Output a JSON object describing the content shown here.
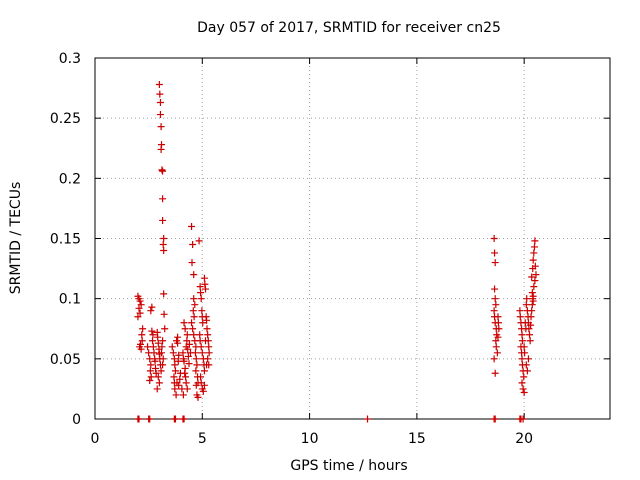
{
  "chart_data": {
    "type": "scatter",
    "title": "Day 057 of 2017, SRMTID for receiver cn25",
    "xlabel": "GPS time / hours",
    "ylabel": "SRMTID / TECUs",
    "xlim": [
      0,
      24
    ],
    "ylim": [
      0,
      0.3
    ],
    "grid": true,
    "x_ticks": [
      0,
      5,
      10,
      15,
      20
    ],
    "x_tick_labels": [
      "0",
      "5",
      "10",
      "15",
      "20"
    ],
    "y_ticks": [
      0,
      0.05,
      0.1,
      0.15,
      0.2,
      0.25,
      0.3
    ],
    "y_tick_labels": [
      "0",
      "0.05",
      "0.1",
      "0.15",
      "0.2",
      "0.25",
      "0.3"
    ],
    "marker": "+",
    "color": "#cc0000",
    "series": [
      {
        "name": "SRMTID",
        "points": [
          [
            2.0,
            0.0
          ],
          [
            2.05,
            0.0
          ],
          [
            2.5,
            0.0
          ],
          [
            2.55,
            0.0
          ],
          [
            3.7,
            0.0
          ],
          [
            3.75,
            0.0
          ],
          [
            4.1,
            0.0
          ],
          [
            4.15,
            0.0
          ],
          [
            12.7,
            0.0
          ],
          [
            18.6,
            0.0
          ],
          [
            18.65,
            0.0
          ],
          [
            19.8,
            0.0
          ],
          [
            19.85,
            0.0
          ],
          [
            19.95,
            0.0
          ],
          [
            2.0,
            0.102
          ],
          [
            2.05,
            0.1
          ],
          [
            2.1,
            0.098
          ],
          [
            2.15,
            0.095
          ],
          [
            2.05,
            0.092
          ],
          [
            2.1,
            0.088
          ],
          [
            2.0,
            0.085
          ],
          [
            2.12,
            0.062
          ],
          [
            2.08,
            0.06
          ],
          [
            2.15,
            0.058
          ],
          [
            2.2,
            0.065
          ],
          [
            2.18,
            0.07
          ],
          [
            2.22,
            0.075
          ],
          [
            2.45,
            0.06
          ],
          [
            2.5,
            0.055
          ],
          [
            2.55,
            0.05
          ],
          [
            2.6,
            0.045
          ],
          [
            2.58,
            0.04
          ],
          [
            2.62,
            0.035
          ],
          [
            2.65,
            0.073
          ],
          [
            2.7,
            0.07
          ],
          [
            2.68,
            0.065
          ],
          [
            2.72,
            0.06
          ],
          [
            2.75,
            0.055
          ],
          [
            2.78,
            0.05
          ],
          [
            2.8,
            0.048
          ],
          [
            2.82,
            0.042
          ],
          [
            2.85,
            0.038
          ],
          [
            2.6,
            0.09
          ],
          [
            2.65,
            0.093
          ],
          [
            2.55,
            0.032
          ],
          [
            2.9,
            0.072
          ],
          [
            2.92,
            0.068
          ],
          [
            2.95,
            0.063
          ],
          [
            2.98,
            0.058
          ],
          [
            3.0,
            0.054
          ],
          [
            3.02,
            0.05
          ],
          [
            3.05,
            0.045
          ],
          [
            3.08,
            0.04
          ],
          [
            2.95,
            0.035
          ],
          [
            3.0,
            0.03
          ],
          [
            2.9,
            0.025
          ],
          [
            3.1,
            0.055
          ],
          [
            3.12,
            0.06
          ],
          [
            3.15,
            0.065
          ],
          [
            3.15,
            0.045
          ],
          [
            3.18,
            0.05
          ],
          [
            3.0,
            0.278
          ],
          [
            3.02,
            0.27
          ],
          [
            3.05,
            0.263
          ],
          [
            3.05,
            0.253
          ],
          [
            3.08,
            0.243
          ],
          [
            3.1,
            0.228
          ],
          [
            3.08,
            0.224
          ],
          [
            3.12,
            0.207
          ],
          [
            3.15,
            0.206
          ],
          [
            3.15,
            0.183
          ],
          [
            3.15,
            0.165
          ],
          [
            3.2,
            0.15
          ],
          [
            3.18,
            0.145
          ],
          [
            3.2,
            0.14
          ],
          [
            3.22,
            0.087
          ],
          [
            3.25,
            0.075
          ],
          [
            3.2,
            0.104
          ],
          [
            3.6,
            0.06
          ],
          [
            3.65,
            0.055
          ],
          [
            3.7,
            0.05
          ],
          [
            3.72,
            0.045
          ],
          [
            3.75,
            0.04
          ],
          [
            3.68,
            0.035
          ],
          [
            3.7,
            0.03
          ],
          [
            3.72,
            0.025
          ],
          [
            3.78,
            0.02
          ],
          [
            3.8,
            0.065
          ],
          [
            3.85,
            0.063
          ],
          [
            3.9,
            0.053
          ],
          [
            3.88,
            0.048
          ],
          [
            3.82,
            0.03
          ],
          [
            3.9,
            0.028
          ],
          [
            3.95,
            0.033
          ],
          [
            3.98,
            0.038
          ],
          [
            3.85,
            0.068
          ],
          [
            4.1,
            0.055
          ],
          [
            4.12,
            0.05
          ],
          [
            4.15,
            0.048
          ],
          [
            4.2,
            0.042
          ],
          [
            4.18,
            0.038
          ],
          [
            4.22,
            0.035
          ],
          [
            4.25,
            0.06
          ],
          [
            4.28,
            0.065
          ],
          [
            4.3,
            0.07
          ],
          [
            4.32,
            0.058
          ],
          [
            4.35,
            0.052
          ],
          [
            4.38,
            0.046
          ],
          [
            4.15,
            0.08
          ],
          [
            4.2,
            0.075
          ],
          [
            4.05,
            0.025
          ],
          [
            4.12,
            0.02
          ],
          [
            4.25,
            0.03
          ],
          [
            4.3,
            0.025
          ],
          [
            4.4,
            0.062
          ],
          [
            4.45,
            0.055
          ],
          [
            4.5,
            0.16
          ],
          [
            4.55,
            0.145
          ],
          [
            4.52,
            0.13
          ],
          [
            4.6,
            0.12
          ],
          [
            4.58,
            0.09
          ],
          [
            4.62,
            0.085
          ],
          [
            4.5,
            0.08
          ],
          [
            4.55,
            0.075
          ],
          [
            4.6,
            0.07
          ],
          [
            4.65,
            0.065
          ],
          [
            4.7,
            0.06
          ],
          [
            4.68,
            0.055
          ],
          [
            4.72,
            0.05
          ],
          [
            4.75,
            0.045
          ],
          [
            4.7,
            0.04
          ],
          [
            4.78,
            0.035
          ],
          [
            4.8,
            0.03
          ],
          [
            4.72,
            0.028
          ],
          [
            4.75,
            0.02
          ],
          [
            4.8,
            0.018
          ],
          [
            4.6,
            0.1
          ],
          [
            4.65,
            0.095
          ],
          [
            4.85,
            0.148
          ],
          [
            4.9,
            0.11
          ],
          [
            4.92,
            0.105
          ],
          [
            4.95,
            0.1
          ],
          [
            4.98,
            0.09
          ],
          [
            5.0,
            0.085
          ],
          [
            5.02,
            0.08
          ],
          [
            4.88,
            0.07
          ],
          [
            4.9,
            0.065
          ],
          [
            4.95,
            0.06
          ],
          [
            5.0,
            0.055
          ],
          [
            5.05,
            0.05
          ],
          [
            5.08,
            0.045
          ],
          [
            5.1,
            0.04
          ],
          [
            4.92,
            0.035
          ],
          [
            4.95,
            0.03
          ],
          [
            5.0,
            0.025
          ],
          [
            5.05,
            0.023
          ],
          [
            5.1,
            0.028
          ],
          [
            5.1,
            0.117
          ],
          [
            5.12,
            0.112
          ],
          [
            5.15,
            0.108
          ],
          [
            5.18,
            0.085
          ],
          [
            5.2,
            0.082
          ],
          [
            5.22,
            0.075
          ],
          [
            5.25,
            0.07
          ],
          [
            5.28,
            0.065
          ],
          [
            5.3,
            0.06
          ],
          [
            5.32,
            0.055
          ],
          [
            5.25,
            0.05
          ],
          [
            5.2,
            0.045
          ],
          [
            5.15,
            0.065
          ],
          [
            5.3,
            0.045
          ],
          [
            18.6,
            0.15
          ],
          [
            18.62,
            0.138
          ],
          [
            18.65,
            0.13
          ],
          [
            18.62,
            0.108
          ],
          [
            18.65,
            0.1
          ],
          [
            18.68,
            0.095
          ],
          [
            18.6,
            0.09
          ],
          [
            18.62,
            0.085
          ],
          [
            18.65,
            0.08
          ],
          [
            18.7,
            0.075
          ],
          [
            18.72,
            0.07
          ],
          [
            18.68,
            0.065
          ],
          [
            18.7,
            0.06
          ],
          [
            18.75,
            0.055
          ],
          [
            18.6,
            0.05
          ],
          [
            18.65,
            0.038
          ],
          [
            18.78,
            0.085
          ],
          [
            18.8,
            0.08
          ],
          [
            18.82,
            0.075
          ],
          [
            18.78,
            0.068
          ],
          [
            19.8,
            0.09
          ],
          [
            19.82,
            0.085
          ],
          [
            19.85,
            0.08
          ],
          [
            19.88,
            0.075
          ],
          [
            19.9,
            0.07
          ],
          [
            19.92,
            0.065
          ],
          [
            19.85,
            0.06
          ],
          [
            19.88,
            0.055
          ],
          [
            19.9,
            0.05
          ],
          [
            19.92,
            0.045
          ],
          [
            19.95,
            0.04
          ],
          [
            19.98,
            0.035
          ],
          [
            19.9,
            0.03
          ],
          [
            19.95,
            0.025
          ],
          [
            20.0,
            0.022
          ],
          [
            20.0,
            0.06
          ],
          [
            20.02,
            0.055
          ],
          [
            20.05,
            0.08
          ],
          [
            20.08,
            0.075
          ],
          [
            20.1,
            0.095
          ],
          [
            20.12,
            0.1
          ],
          [
            20.15,
            0.09
          ],
          [
            20.18,
            0.085
          ],
          [
            20.2,
            0.08
          ],
          [
            20.22,
            0.075
          ],
          [
            20.25,
            0.07
          ],
          [
            20.28,
            0.065
          ],
          [
            20.3,
            0.078
          ],
          [
            20.32,
            0.085
          ],
          [
            20.35,
            0.09
          ],
          [
            20.38,
            0.095
          ],
          [
            20.4,
            0.1
          ],
          [
            20.42,
            0.098
          ],
          [
            20.1,
            0.045
          ],
          [
            20.15,
            0.04
          ],
          [
            20.2,
            0.05
          ],
          [
            20.35,
            0.118
          ],
          [
            20.4,
            0.125
          ],
          [
            20.42,
            0.132
          ],
          [
            20.45,
            0.138
          ],
          [
            20.48,
            0.143
          ],
          [
            20.5,
            0.148
          ],
          [
            20.52,
            0.127
          ],
          [
            20.55,
            0.12
          ],
          [
            20.45,
            0.11
          ],
          [
            20.5,
            0.115
          ],
          [
            20.38,
            0.105
          ],
          [
            20.42,
            0.102
          ]
        ]
      }
    ]
  }
}
